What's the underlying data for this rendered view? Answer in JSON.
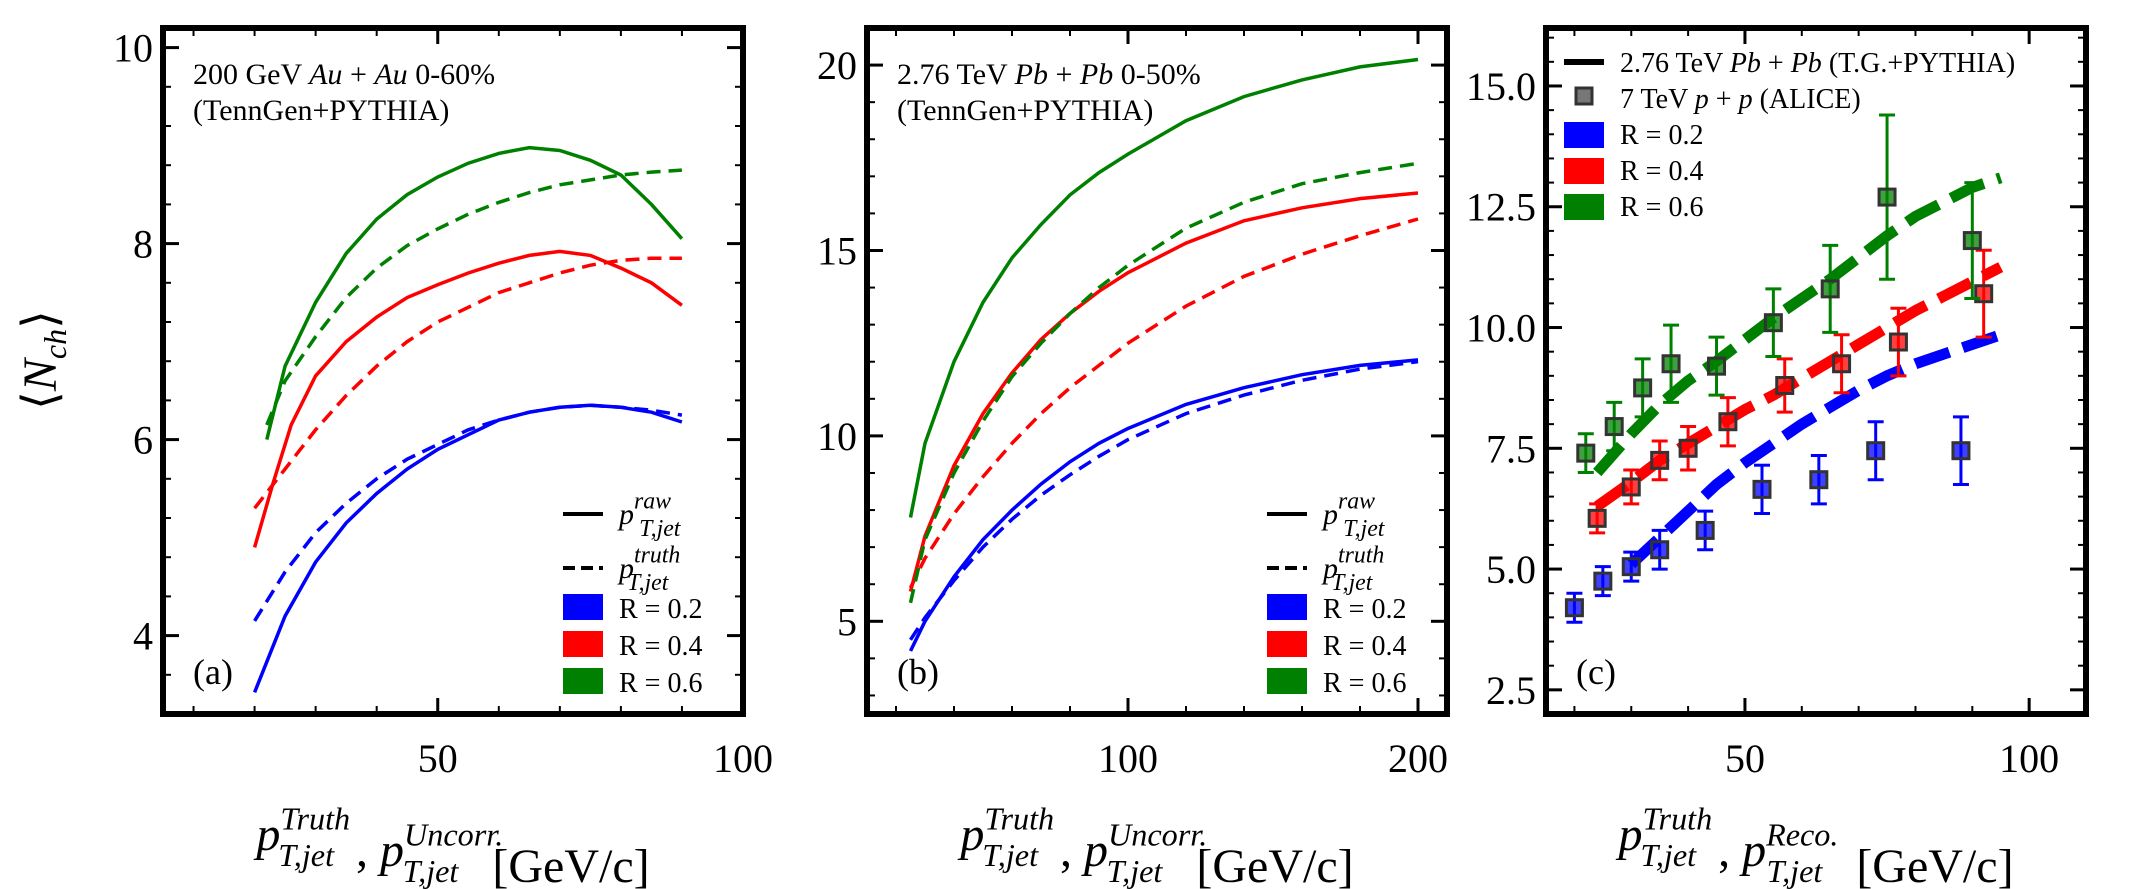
{
  "figure": {
    "ylabel": "⟨N_ch⟩"
  },
  "chart_data": [
    {
      "panel": "(a)",
      "type": "line",
      "annotation_lines": [
        "200 GeV Au + Au 0-60%",
        "(TennGen+PYTHIA)"
      ],
      "xlabel": "p_T,jet^Truth , p_T,jet^Uncorr. [GeV/c]",
      "xlim": [
        5,
        100
      ],
      "ylim": [
        3.2,
        10.2
      ],
      "xticks": [
        50,
        100
      ],
      "yticks": [
        4,
        6,
        8,
        10
      ],
      "grid": false,
      "legend": {
        "placement": "bottom-right",
        "style_entries": [
          {
            "style": "solid",
            "label": "p_T,jet^raw"
          },
          {
            "style": "dashed",
            "label": "p_T,jet^truth"
          }
        ],
        "color_entries": [
          {
            "label": "R = 0.2",
            "color": "#0000ff"
          },
          {
            "label": "R = 0.4",
            "color": "#ff0000"
          },
          {
            "label": "R = 0.6",
            "color": "#008000"
          }
        ]
      },
      "series": [
        {
          "R": "0.2",
          "color": "#0000ff",
          "style": "solid",
          "x": [
            20,
            25,
            30,
            35,
            40,
            45,
            50,
            55,
            60,
            65,
            70,
            75,
            80,
            85,
            90
          ],
          "y": [
            3.42,
            4.2,
            4.75,
            5.15,
            5.45,
            5.7,
            5.9,
            6.05,
            6.2,
            6.28,
            6.33,
            6.35,
            6.33,
            6.28,
            6.18
          ]
        },
        {
          "R": "0.2",
          "color": "#0000ff",
          "style": "dashed",
          "x": [
            20,
            25,
            30,
            35,
            40,
            45,
            50,
            55,
            60,
            65,
            70,
            75,
            80,
            85,
            90
          ],
          "y": [
            4.15,
            4.65,
            5.05,
            5.35,
            5.6,
            5.8,
            5.95,
            6.1,
            6.2,
            6.28,
            6.33,
            6.35,
            6.33,
            6.3,
            6.25
          ]
        },
        {
          "R": "0.4",
          "color": "#ff0000",
          "style": "solid",
          "x": [
            20,
            23,
            26,
            30,
            35,
            40,
            45,
            50,
            55,
            60,
            65,
            70,
            75,
            80,
            85,
            90
          ],
          "y": [
            4.9,
            5.55,
            6.15,
            6.65,
            7.0,
            7.25,
            7.45,
            7.58,
            7.7,
            7.8,
            7.88,
            7.92,
            7.88,
            7.75,
            7.6,
            7.37
          ]
        },
        {
          "R": "0.4",
          "color": "#ff0000",
          "style": "dashed",
          "x": [
            20,
            25,
            30,
            35,
            40,
            45,
            50,
            55,
            60,
            65,
            70,
            75,
            80,
            85,
            90
          ],
          "y": [
            5.3,
            5.7,
            6.1,
            6.45,
            6.75,
            7.0,
            7.2,
            7.35,
            7.5,
            7.6,
            7.7,
            7.78,
            7.83,
            7.85,
            7.85
          ]
        },
        {
          "R": "0.6",
          "color": "#008000",
          "style": "solid",
          "x": [
            22,
            25,
            30,
            35,
            40,
            45,
            50,
            55,
            60,
            65,
            70,
            75,
            80,
            85,
            90
          ],
          "y": [
            6.0,
            6.75,
            7.4,
            7.9,
            8.25,
            8.5,
            8.68,
            8.82,
            8.92,
            8.98,
            8.95,
            8.85,
            8.7,
            8.4,
            8.05
          ]
        },
        {
          "R": "0.6",
          "color": "#008000",
          "style": "dashed",
          "x": [
            22,
            25,
            30,
            35,
            40,
            45,
            50,
            55,
            60,
            65,
            70,
            75,
            80,
            85,
            90
          ],
          "y": [
            6.15,
            6.6,
            7.05,
            7.45,
            7.75,
            7.98,
            8.15,
            8.3,
            8.42,
            8.52,
            8.6,
            8.65,
            8.7,
            8.73,
            8.75
          ]
        }
      ]
    },
    {
      "panel": "(b)",
      "type": "line",
      "annotation_lines": [
        "2.76 TeV Pb + Pb 0-50%",
        "(TennGen+PYTHIA)"
      ],
      "xlabel": "p_T,jet^Truth , p_T,jet^Uncorr. [GeV/c]",
      "xlim": [
        10,
        210
      ],
      "ylim": [
        2.5,
        21
      ],
      "xticks": [
        100,
        200
      ],
      "yticks": [
        5,
        10,
        15,
        20
      ],
      "grid": false,
      "legend": {
        "placement": "bottom-right",
        "style_entries": [
          {
            "style": "solid",
            "label": "p_T,jet^raw"
          },
          {
            "style": "dashed",
            "label": "p_T,jet^truth"
          }
        ],
        "color_entries": [
          {
            "label": "R = 0.2",
            "color": "#0000ff"
          },
          {
            "label": "R = 0.4",
            "color": "#ff0000"
          },
          {
            "label": "R = 0.6",
            "color": "#008000"
          }
        ]
      },
      "series": [
        {
          "R": "0.2",
          "color": "#0000ff",
          "style": "solid",
          "x": [
            25,
            30,
            40,
            50,
            60,
            70,
            80,
            90,
            100,
            120,
            140,
            160,
            180,
            200
          ],
          "y": [
            4.2,
            5.0,
            6.2,
            7.2,
            8.0,
            8.7,
            9.3,
            9.8,
            10.2,
            10.85,
            11.3,
            11.65,
            11.9,
            12.05
          ]
        },
        {
          "R": "0.2",
          "color": "#0000ff",
          "style": "dashed",
          "x": [
            25,
            30,
            40,
            50,
            60,
            70,
            80,
            90,
            100,
            120,
            140,
            160,
            180,
            200
          ],
          "y": [
            4.5,
            5.1,
            6.1,
            7.0,
            7.75,
            8.4,
            8.95,
            9.45,
            9.9,
            10.6,
            11.1,
            11.5,
            11.8,
            12.0
          ]
        },
        {
          "R": "0.4",
          "color": "#ff0000",
          "style": "solid",
          "x": [
            25,
            30,
            40,
            50,
            60,
            70,
            80,
            90,
            100,
            120,
            140,
            160,
            180,
            200
          ],
          "y": [
            5.8,
            7.3,
            9.2,
            10.6,
            11.7,
            12.6,
            13.3,
            13.9,
            14.4,
            15.2,
            15.8,
            16.15,
            16.4,
            16.55
          ]
        },
        {
          "R": "0.4",
          "color": "#ff0000",
          "style": "dashed",
          "x": [
            25,
            30,
            40,
            50,
            60,
            70,
            80,
            90,
            100,
            120,
            140,
            160,
            180,
            200
          ],
          "y": [
            5.9,
            6.7,
            7.9,
            8.9,
            9.8,
            10.6,
            11.3,
            11.9,
            12.5,
            13.5,
            14.3,
            14.9,
            15.4,
            15.85
          ]
        },
        {
          "R": "0.6",
          "color": "#008000",
          "style": "solid",
          "x": [
            25,
            30,
            40,
            50,
            60,
            70,
            80,
            90,
            100,
            120,
            140,
            160,
            180,
            200
          ],
          "y": [
            7.8,
            9.8,
            12.0,
            13.6,
            14.8,
            15.7,
            16.5,
            17.1,
            17.6,
            18.5,
            19.15,
            19.6,
            19.95,
            20.15
          ]
        },
        {
          "R": "0.6",
          "color": "#008000",
          "style": "dashed",
          "x": [
            25,
            30,
            40,
            50,
            60,
            70,
            80,
            90,
            100,
            120,
            140,
            160,
            180,
            200
          ],
          "y": [
            5.5,
            7.2,
            9.0,
            10.4,
            11.6,
            12.5,
            13.3,
            14.0,
            14.6,
            15.6,
            16.3,
            16.8,
            17.1,
            17.35
          ]
        }
      ]
    },
    {
      "panel": "(c)",
      "type": "scatter",
      "xlabel": "p_T,jet^Truth , p_T,jet^Reco. [GeV/c]",
      "xlim": [
        15,
        110
      ],
      "ylim": [
        2,
        16.2
      ],
      "xticks": [
        50,
        100
      ],
      "yticks": [
        2.5,
        5.0,
        7.5,
        10.0,
        12.5,
        15.0
      ],
      "ytick_labels": [
        "2.5",
        "5.0",
        "7.5",
        "10.0",
        "12.5",
        "15.0"
      ],
      "grid": false,
      "legend": {
        "placement": "top-left",
        "line_entry": "2.76 TeV Pb + Pb (T.G.+PYTHIA)",
        "marker_entry": "7 TeV p + p (ALICE)",
        "color_entries": [
          {
            "label": "R = 0.2",
            "color": "#0000ff"
          },
          {
            "label": "R = 0.4",
            "color": "#ff0000"
          },
          {
            "label": "R = 0.6",
            "color": "#008000"
          }
        ]
      },
      "lines": [
        {
          "R": "0.2",
          "color": "#0000ff",
          "style": "dashed",
          "x": [
            30,
            35,
            40,
            45,
            50,
            55,
            60,
            65,
            70,
            75,
            80,
            85,
            90,
            95
          ],
          "y": [
            5.1,
            5.65,
            6.2,
            6.75,
            7.2,
            7.6,
            8.0,
            8.35,
            8.7,
            9.0,
            9.25,
            9.45,
            9.65,
            9.85
          ]
        },
        {
          "R": "0.4",
          "color": "#ff0000",
          "style": "dashed",
          "x": [
            24,
            30,
            35,
            40,
            45,
            50,
            55,
            60,
            65,
            70,
            75,
            80,
            85,
            90,
            95
          ],
          "y": [
            6.3,
            6.8,
            7.25,
            7.6,
            7.95,
            8.3,
            8.6,
            8.95,
            9.3,
            9.65,
            10.0,
            10.35,
            10.65,
            10.95,
            11.25
          ]
        },
        {
          "R": "0.6",
          "color": "#008000",
          "style": "dashed",
          "x": [
            24,
            30,
            35,
            40,
            45,
            50,
            55,
            60,
            65,
            70,
            75,
            80,
            85,
            90,
            95
          ],
          "y": [
            7.0,
            7.8,
            8.4,
            8.9,
            9.3,
            9.75,
            10.2,
            10.6,
            11.0,
            11.45,
            11.9,
            12.3,
            12.6,
            12.9,
            13.1
          ]
        }
      ],
      "points": [
        {
          "R": "0.2",
          "color": "#0000ff",
          "x": [
            20,
            25,
            30,
            35,
            43,
            53,
            63,
            73,
            88
          ],
          "y": [
            4.2,
            4.75,
            5.05,
            5.4,
            5.8,
            6.65,
            6.85,
            7.45,
            7.45
          ],
          "err": [
            0.3,
            0.3,
            0.3,
            0.4,
            0.4,
            0.5,
            0.5,
            0.6,
            0.7
          ]
        },
        {
          "R": "0.4",
          "color": "#ff0000",
          "x": [
            24,
            30,
            35,
            40,
            47,
            57,
            67,
            77,
            92
          ],
          "y": [
            6.05,
            6.7,
            7.25,
            7.5,
            8.05,
            8.8,
            9.25,
            9.7,
            10.7
          ],
          "err": [
            0.3,
            0.35,
            0.4,
            0.45,
            0.5,
            0.55,
            0.6,
            0.7,
            0.9
          ]
        },
        {
          "R": "0.6",
          "color": "#008000",
          "x": [
            22,
            27,
            32,
            37,
            45,
            55,
            65,
            75,
            90
          ],
          "y": [
            7.4,
            7.95,
            8.75,
            9.25,
            9.2,
            10.1,
            10.8,
            12.7,
            11.8
          ],
          "err": [
            0.4,
            0.5,
            0.6,
            0.8,
            0.6,
            0.7,
            0.9,
            1.7,
            1.2
          ]
        }
      ]
    }
  ]
}
